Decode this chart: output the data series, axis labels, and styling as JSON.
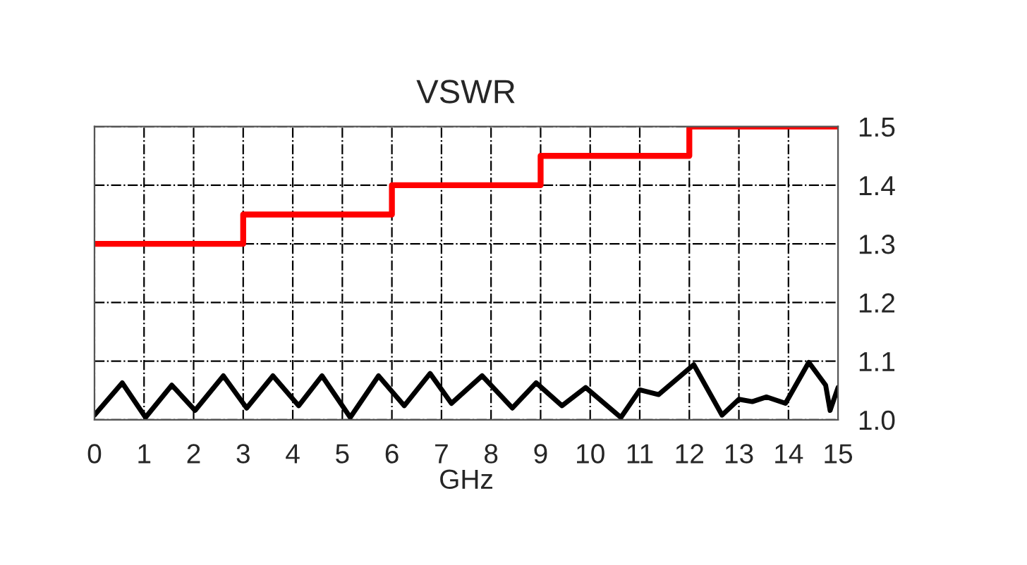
{
  "chart_data": {
    "type": "line",
    "title": "VSWR",
    "xlabel": "GHz",
    "xlim": [
      0,
      15
    ],
    "xticks": [
      0,
      1,
      2,
      3,
      4,
      5,
      6,
      7,
      8,
      9,
      10,
      11,
      12,
      13,
      14,
      15
    ],
    "ylim": [
      1.0,
      1.5
    ],
    "yticks": [
      {
        "value": 1.0,
        "label": "1.0"
      },
      1.1,
      1.2,
      1.3,
      1.4,
      1.5
    ],
    "grid": true,
    "legend": false,
    "series": [
      {
        "type": "step",
        "color": "#ff0000",
        "x": [
          0,
          3,
          6,
          9,
          12,
          15
        ],
        "values": [
          1.3,
          1.35,
          1.4,
          1.45,
          1.5,
          1.5
        ]
      },
      {
        "color": "#000000",
        "x": [
          0,
          0.56,
          1.03,
          1.56,
          2.03,
          2.6,
          3.07,
          3.6,
          4.12,
          4.59,
          5.16,
          5.73,
          6.25,
          6.77,
          7.2,
          7.82,
          8.43,
          8.91,
          9.43,
          9.91,
          10.62,
          11.0,
          11.38,
          12.09,
          12.66,
          13.0,
          13.27,
          13.56,
          13.94,
          14.41,
          14.75,
          14.84,
          15
        ],
        "values": [
          1.008,
          1.063,
          1.004,
          1.059,
          1.016,
          1.075,
          1.02,
          1.075,
          1.024,
          1.075,
          1.004,
          1.075,
          1.024,
          1.079,
          1.028,
          1.075,
          1.02,
          1.063,
          1.024,
          1.055,
          1.004,
          1.051,
          1.043,
          1.094,
          1.008,
          1.035,
          1.031,
          1.039,
          1.028,
          1.098,
          1.059,
          1.016,
          1.055
        ]
      }
    ]
  }
}
